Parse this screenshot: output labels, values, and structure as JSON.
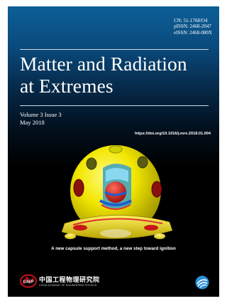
{
  "journal": {
    "identifiers": [
      "CN: 51-1768/O4",
      "pISSN: 2468-2047",
      "eISSN: 2468-080X"
    ],
    "title_line1": "Matter and Radiation",
    "title_line2": "at Extremes",
    "volume_issue": "Volume 3 Issue 3",
    "date": "May 2018",
    "doi": "https://doi.org/10.1016/j.mre.2018.01.004",
    "cover_caption": "A new capsule support method, a new step toward ignition"
  },
  "logos": {
    "caep_name_cn": "中国工程物理研究院",
    "caep_name_en": "CHINA ACADEMY OF ENGINEERING PHYSICS",
    "caep_emblem_text": "CAEP"
  },
  "colors": {
    "cover_top": "#0d5f98",
    "cover_bottom": "#000000",
    "hohlraum_yellow": "#f2e600",
    "capsule_red": "#d62020",
    "accent_blue": "#1e5fd0",
    "caep_red": "#c8101e",
    "publisher_blue": "#2a8fd8"
  }
}
